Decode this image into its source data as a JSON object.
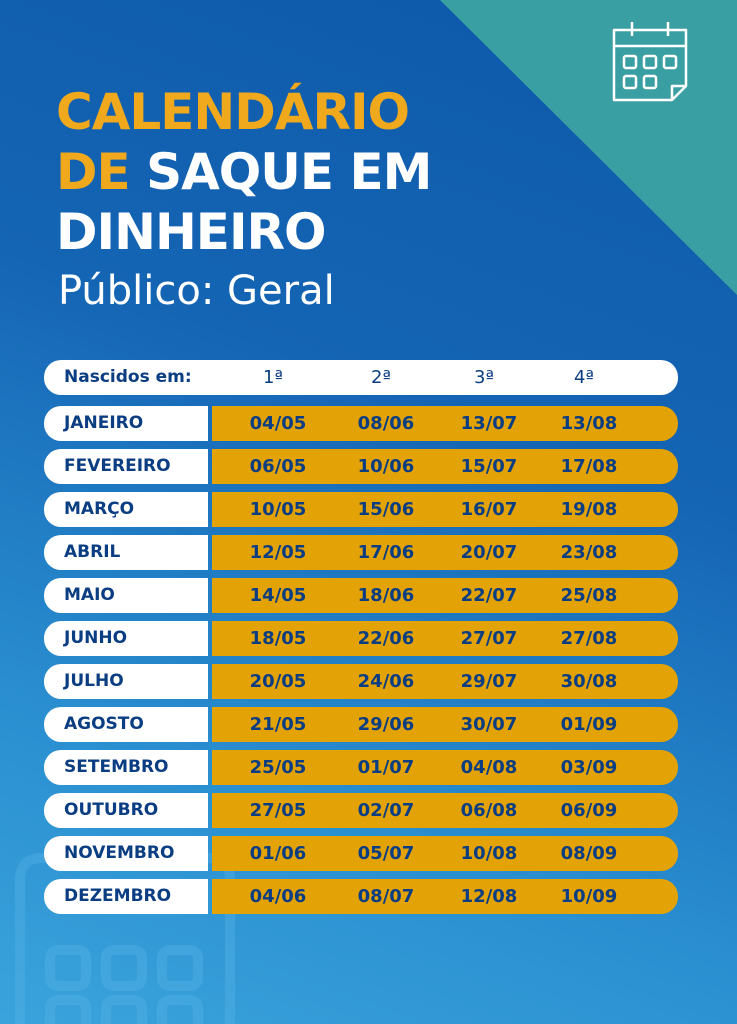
{
  "title": {
    "line1": "CALENDÁRIO",
    "line2_gold": "DE",
    "line2_white": "SAQUE EM",
    "line3": "DINHEIRO"
  },
  "subtitle": "Público: Geral",
  "table": {
    "header_label": "Nascidos em:",
    "columns": [
      "1ª",
      "2ª",
      "3ª",
      "4ª"
    ],
    "rows": [
      {
        "month": "JANEIRO",
        "dates": [
          "04/05",
          "08/06",
          "13/07",
          "13/08"
        ]
      },
      {
        "month": "FEVEREIRO",
        "dates": [
          "06/05",
          "10/06",
          "15/07",
          "17/08"
        ]
      },
      {
        "month": "MARÇO",
        "dates": [
          "10/05",
          "15/06",
          "16/07",
          "19/08"
        ]
      },
      {
        "month": "ABRIL",
        "dates": [
          "12/05",
          "17/06",
          "20/07",
          "23/08"
        ]
      },
      {
        "month": "MAIO",
        "dates": [
          "14/05",
          "18/06",
          "22/07",
          "25/08"
        ]
      },
      {
        "month": "JUNHO",
        "dates": [
          "18/05",
          "22/06",
          "27/07",
          "27/08"
        ]
      },
      {
        "month": "JULHO",
        "dates": [
          "20/05",
          "24/06",
          "29/07",
          "30/08"
        ]
      },
      {
        "month": "AGOSTO",
        "dates": [
          "21/05",
          "29/06",
          "30/07",
          "01/09"
        ]
      },
      {
        "month": "SETEMBRO",
        "dates": [
          "25/05",
          "01/07",
          "04/08",
          "03/09"
        ]
      },
      {
        "month": "OUTUBRO",
        "dates": [
          "27/05",
          "02/07",
          "06/08",
          "06/09"
        ]
      },
      {
        "month": "NOVEMBRO",
        "dates": [
          "01/06",
          "05/07",
          "10/08",
          "08/09"
        ]
      },
      {
        "month": "DEZEMBRO",
        "dates": [
          "04/06",
          "08/07",
          "12/08",
          "10/09"
        ]
      }
    ]
  },
  "icons": {
    "top": "calendar-icon",
    "bottom": "calendar-icon"
  },
  "colors": {
    "gold": "#f0a81c",
    "navy": "#0b3d82",
    "teal": "#3a9fa3",
    "blue": "#1565b5"
  }
}
